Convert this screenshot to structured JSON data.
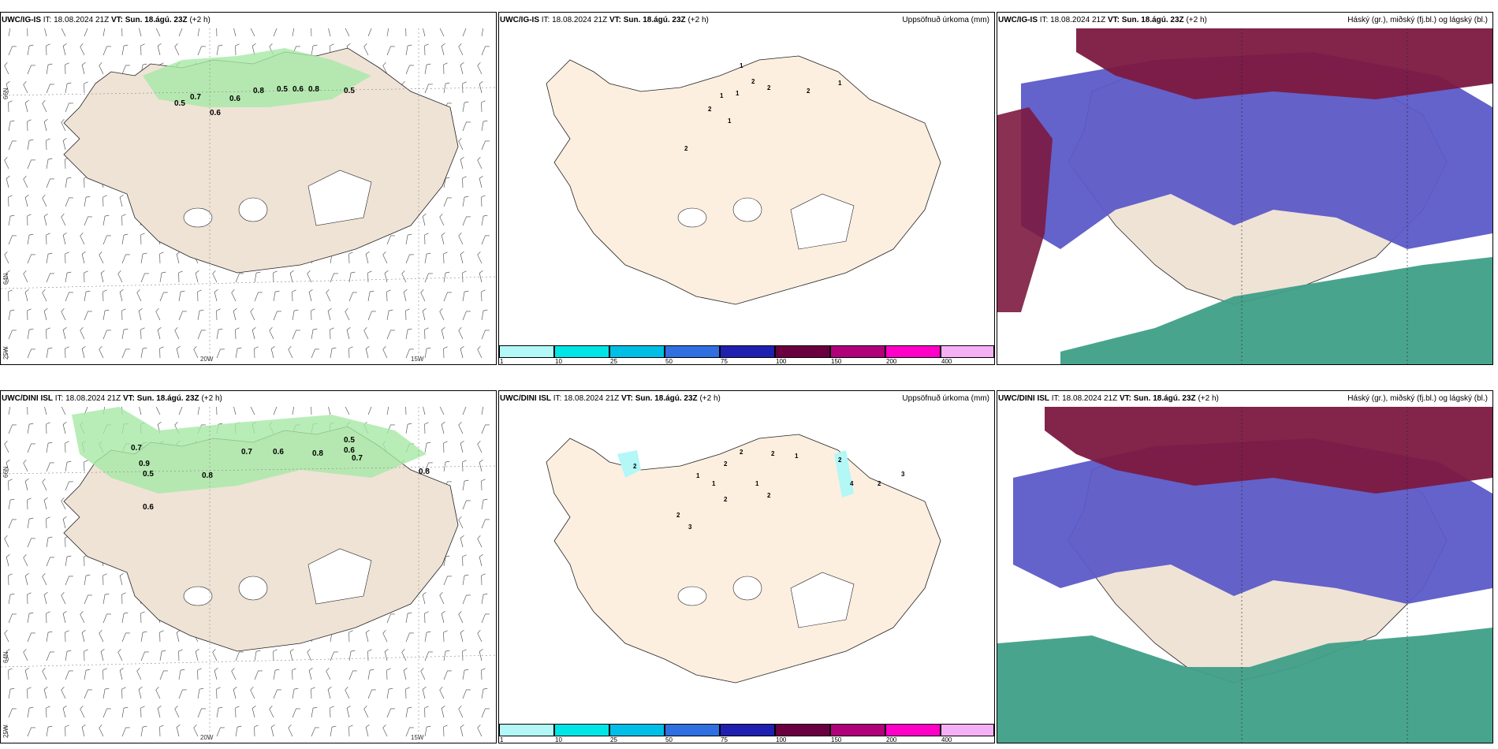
{
  "rows": [
    {
      "model": "UWC/IG-IS",
      "it_label": "IT:",
      "it": "18.08.2024 21Z",
      "vt_label": "VT:",
      "vt": "Sun. 18.ágú. 23Z",
      "lead": "(+2 h)"
    },
    {
      "model": "UWC/DINI ISL",
      "it_label": "IT:",
      "it": "18.08.2024 21Z",
      "vt_label": "VT:",
      "vt": "Sun. 18.ágú. 23Z",
      "lead": "(+2 h)"
    }
  ],
  "titles": {
    "precip": "Uppsöfnuð úrkoma (mm)",
    "cloud": "Háský (gr.), miðský (fj.bl.) og lágský (bl.)"
  },
  "axes": {
    "lon_20w": "20W",
    "lon_15w": "15W",
    "lat_66n": "66N",
    "lat_64n": "64N",
    "lon_25w": "25W"
  },
  "colorbar": {
    "labels": [
      "1",
      "10",
      "25",
      "50",
      "75",
      "100",
      "150",
      "200",
      "400"
    ],
    "colors": [
      "#b3f7f7",
      "#00e5e5",
      "#00bfe6",
      "#2f6fe0",
      "#2020b0",
      "#6a0040",
      "#b0007a",
      "#ff00c8",
      "#f5b0f5"
    ]
  },
  "panel1_values": {
    "row1": [
      "0.5",
      "0.7",
      "0.6",
      "0.6",
      "0.8",
      "0.5",
      "0.6",
      "0.8",
      "0.5"
    ],
    "row2": [
      "0.7",
      "0.9",
      "0.5",
      "0.6",
      "0.8",
      "0.7",
      "0.6",
      "0.8",
      "0.5",
      "0.6",
      "0.7",
      "0.8"
    ]
  },
  "panel2_values": {
    "row1": [
      "1",
      "2",
      "1",
      "1",
      "2",
      "2",
      "1",
      "2",
      "1",
      "2"
    ],
    "row2": [
      "2",
      "1",
      "2",
      "3",
      "2",
      "1",
      "2",
      "2",
      "2",
      "1",
      "2",
      "1",
      "2",
      "4",
      "2",
      "3"
    ]
  },
  "colors": {
    "land": "#efe3d6",
    "land_precip": "#fcefe0",
    "rain_green": "#a6e8a6",
    "high_cloud": "#7c1940",
    "mid_cloud": "#5c5ac8",
    "low_cloud": "#3f9f88"
  }
}
